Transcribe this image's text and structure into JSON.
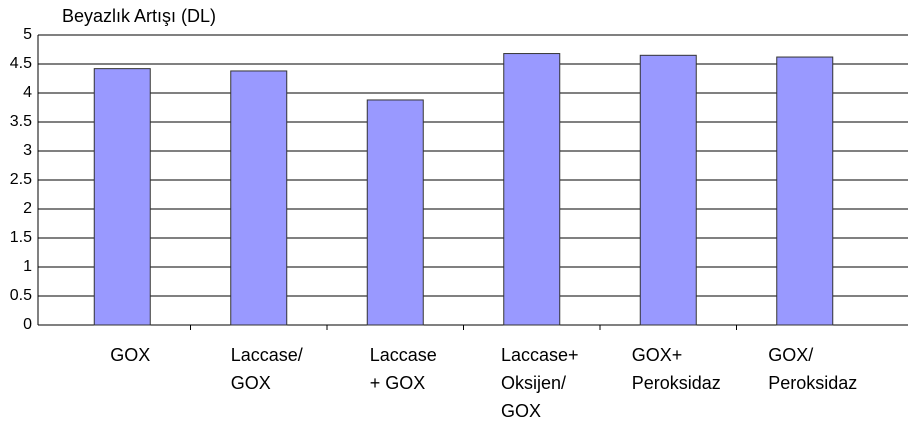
{
  "chart_data": {
    "type": "bar",
    "title": "Beyazlık Artışı (DL)",
    "categories": [
      "GOX",
      "Laccase/\nGOX",
      "Laccase\n+ GOX",
      "Laccase+\nOksijen/\nGOX",
      "GOX+\nPeroksidaz",
      "GOX/\nPeroksidaz"
    ],
    "values": [
      4.42,
      4.38,
      3.88,
      4.68,
      4.65,
      4.62
    ],
    "color": "#9999ff",
    "ylim": [
      0,
      5
    ],
    "yticks": [
      0,
      0.5,
      1,
      1.5,
      2,
      2.5,
      3,
      3.5,
      4,
      4.5,
      5
    ],
    "grid": true
  }
}
